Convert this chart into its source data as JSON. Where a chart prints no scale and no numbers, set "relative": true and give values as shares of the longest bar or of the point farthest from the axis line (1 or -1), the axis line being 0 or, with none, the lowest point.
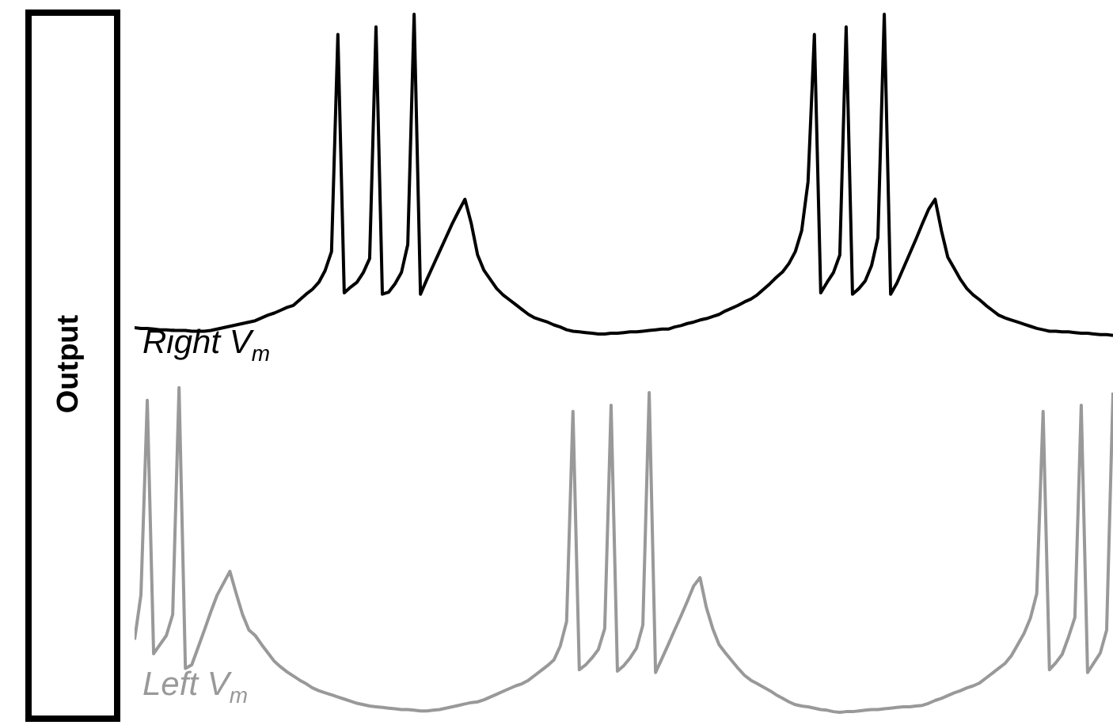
{
  "chart_data": {
    "type": "line",
    "relative": true,
    "ylabel": "Output",
    "tick_labels": false,
    "legend": false,
    "grid": false,
    "marker": "none",
    "line_style": "solid",
    "categories": [
      null,
      null,
      null,
      null,
      null,
      null,
      null,
      null,
      null,
      null,
      null,
      null,
      null,
      null,
      null,
      null,
      null,
      null,
      null,
      null,
      null,
      null,
      null,
      null,
      null,
      null,
      null,
      null,
      null,
      null,
      null,
      null,
      null,
      null,
      null,
      null,
      null,
      null,
      null,
      null,
      null,
      null,
      null,
      null,
      null,
      null,
      null,
      null,
      null,
      null,
      null,
      null,
      null,
      null,
      null,
      null,
      null,
      null,
      null,
      null,
      null,
      null,
      null,
      null,
      null,
      null,
      null,
      null,
      null,
      null,
      null,
      null,
      null,
      null,
      null,
      null,
      null,
      null,
      null,
      null,
      null,
      null,
      null,
      null,
      null,
      null,
      null,
      null,
      null,
      null,
      null,
      null,
      null,
      null,
      null,
      null,
      null,
      null,
      null,
      null,
      null,
      null,
      null,
      null,
      null,
      null,
      null,
      null,
      null,
      null,
      null,
      null,
      null,
      null,
      null,
      null,
      null,
      null,
      null,
      null,
      null,
      null,
      null,
      null,
      null,
      null,
      null,
      null,
      null,
      null,
      null,
      null,
      null,
      null,
      null,
      null,
      null,
      null,
      null,
      null,
      null,
      null,
      null,
      null,
      null,
      null,
      null,
      null,
      null,
      null,
      null,
      null,
      null,
      null,
      null
    ],
    "series": [
      {
        "name": "Right V$_{m}$",
        "color": "#000000",
        "values": [
          0.551,
          0.55,
          0.55,
          0.549,
          0.548,
          0.548,
          0.547,
          0.547,
          0.547,
          0.546,
          0.546,
          0.546,
          0.547,
          0.549,
          0.551,
          0.553,
          0.555,
          0.557,
          0.559,
          0.561,
          0.565,
          0.569,
          0.572,
          0.576,
          0.58,
          0.583,
          0.591,
          0.599,
          0.606,
          0.616,
          0.633,
          0.66,
          0.971,
          0.601,
          0.609,
          0.616,
          0.63,
          0.65,
          0.982,
          0.599,
          0.602,
          0.614,
          0.63,
          0.67,
          1,
          0.599,
          0.62,
          0.64,
          0.66,
          0.68,
          0.7,
          0.718,
          0.735,
          0.7,
          0.655,
          0.633,
          0.62,
          0.607,
          0.598,
          0.591,
          0.584,
          0.577,
          0.57,
          0.565,
          0.562,
          0.559,
          0.555,
          0.552,
          0.548,
          0.546,
          0.545,
          0.544,
          0.543,
          0.542,
          0.542,
          0.543,
          0.543,
          0.544,
          0.545,
          0.545,
          0.546,
          0.547,
          0.548,
          0.549,
          0.549,
          0.552,
          0.554,
          0.557,
          0.559,
          0.562,
          0.564,
          0.567,
          0.57,
          0.575,
          0.579,
          0.583,
          0.588,
          0.592,
          0.598,
          0.606,
          0.614,
          0.623,
          0.631,
          0.643,
          0.66,
          0.69,
          0.76,
          0.971,
          0.601,
          0.616,
          0.63,
          0.655,
          0.982,
          0.599,
          0.607,
          0.618,
          0.64,
          0.68,
          1,
          0.599,
          0.615,
          0.636,
          0.657,
          0.678,
          0.7,
          0.721,
          0.735,
          0.69,
          0.652,
          0.636,
          0.62,
          0.607,
          0.598,
          0.591,
          0.583,
          0.576,
          0.569,
          0.565,
          0.562,
          0.559,
          0.556,
          0.553,
          0.55,
          0.548,
          0.546,
          0.546,
          0.545,
          0.545,
          0.544,
          0.543,
          0.543,
          0.542,
          0.541,
          0.541,
          0.54
        ]
      },
      {
        "name": "Left V$_{m}$",
        "color": "#999999",
        "values": [
          0.104,
          0.168,
          0.447,
          0.084,
          0.097,
          0.11,
          0.14,
          0.465,
          0.063,
          0.068,
          0.093,
          0.118,
          0.144,
          0.168,
          0.185,
          0.202,
          0.17,
          0.14,
          0.118,
          0.11,
          0.097,
          0.085,
          0.073,
          0.065,
          0.058,
          0.052,
          0.046,
          0.041,
          0.035,
          0.031,
          0.028,
          0.025,
          0.022,
          0.019,
          0.016,
          0.013,
          0.011,
          0.009,
          0.008,
          0.007,
          0.006,
          0.005,
          0.004,
          0.004,
          0.003,
          0.002,
          0.002,
          0.003,
          0.004,
          0.006,
          0.008,
          0.01,
          0.012,
          0.014,
          0.015,
          0.018,
          0.022,
          0.026,
          0.03,
          0.034,
          0.038,
          0.041,
          0.046,
          0.053,
          0.06,
          0.067,
          0.075,
          0.095,
          0.13,
          0.431,
          0.061,
          0.068,
          0.078,
          0.09,
          0.12,
          0.44,
          0.059,
          0.067,
          0.078,
          0.092,
          0.125,
          0.458,
          0.057,
          0.077,
          0.097,
          0.118,
          0.138,
          0.159,
          0.181,
          0.193,
          0.15,
          0.12,
          0.097,
          0.085,
          0.074,
          0.063,
          0.053,
          0.046,
          0.041,
          0.036,
          0.031,
          0.025,
          0.02,
          0.015,
          0.011,
          0.009,
          0.008,
          0.006,
          0.004,
          0.003,
          0.001,
          0,
          0.001,
          0.001,
          0.002,
          0.003,
          0.004,
          0.004,
          0.005,
          0.006,
          0.007,
          0.008,
          0.008,
          0.009,
          0.01,
          0.013,
          0.017,
          0.02,
          0.024,
          0.028,
          0.031,
          0.035,
          0.038,
          0.042,
          0.049,
          0.056,
          0.063,
          0.07,
          0.081,
          0.097,
          0.113,
          0.135,
          0.17,
          0.431,
          0.061,
          0.071,
          0.083,
          0.108,
          0.136,
          0.44,
          0.057,
          0.071,
          0.085,
          0.118,
          0.458
        ]
      }
    ]
  }
}
